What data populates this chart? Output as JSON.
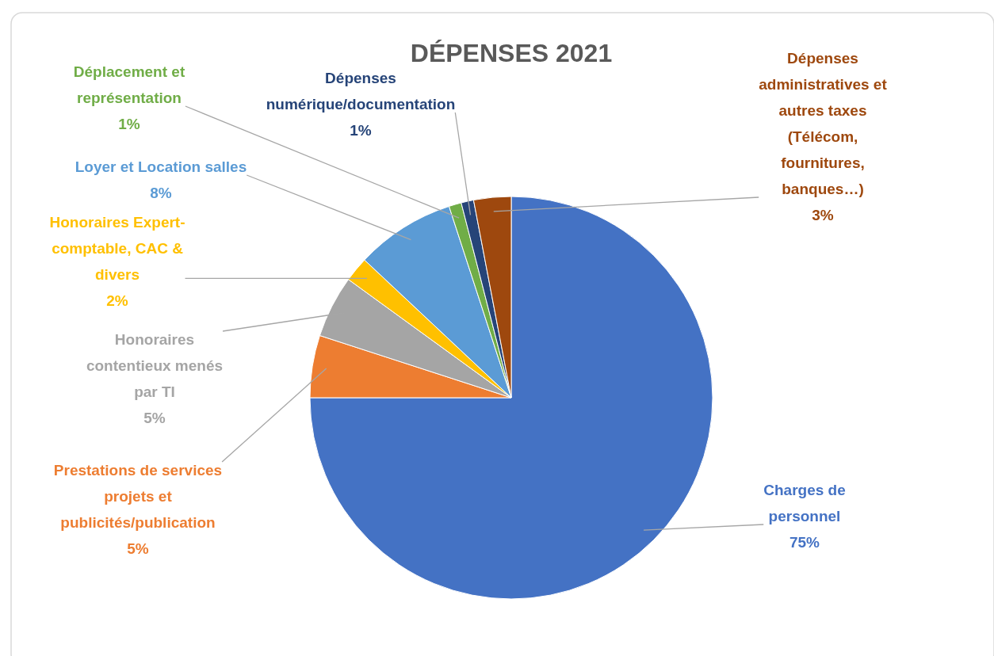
{
  "chart_data": {
    "type": "pie",
    "title": "DÉPENSES 2021",
    "categories": [
      "Charges de\npersonnel",
      "Prestations de services\nprojets et\npublicités/publication",
      "Honoraires\ncontentieux menés\npar TI",
      "Honoraires Expert-\ncomptable, CAC &\ndivers",
      "Loyer et Location salles",
      "Déplacement et\nreprésentation",
      "Dépenses\nnumérique/documentation",
      "Dépenses\nadministratives et\nautres taxes\n(Télécom,\nfournitures,\nbanques…)"
    ],
    "values": [
      75,
      5,
      5,
      2,
      8,
      1,
      1,
      3
    ],
    "value_labels": [
      "75%",
      "5%",
      "5%",
      "2%",
      "8%",
      "1%",
      "1%",
      "3%"
    ],
    "colors": [
      "#4472c4",
      "#ed7d31",
      "#a5a5a5",
      "#ffc000",
      "#5b9bd5",
      "#70ad47",
      "#264478",
      "#9e480e"
    ]
  }
}
